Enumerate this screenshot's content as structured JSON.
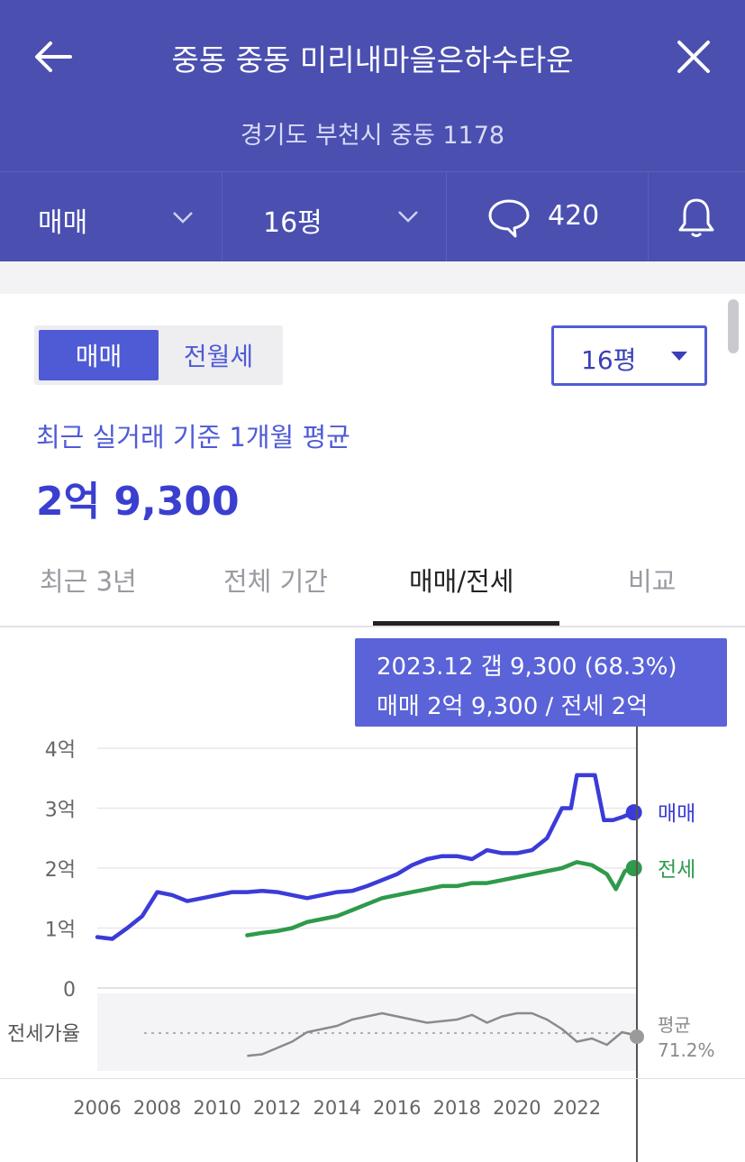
{
  "header": {
    "title": "중동 중동 미리내마을은하수타운",
    "address": "경기도 부천시 중동 1178",
    "trade_type": "매매",
    "area": "16평",
    "comment_count": "420"
  },
  "toggle": {
    "active": "매매",
    "inactive": "전월세"
  },
  "size_select": {
    "value": "16평"
  },
  "summary": {
    "subtitle": "최근 실거래 기준 1개월 평균",
    "price": "2억 9,300"
  },
  "tabs": [
    {
      "label": "최근 3년",
      "active": false
    },
    {
      "label": "전체 기간",
      "active": false
    },
    {
      "label": "매매/전세",
      "active": true
    },
    {
      "label": "비교",
      "active": false
    }
  ],
  "tooltip": {
    "line1": "2023.12  갭 9,300 (68.3%)",
    "line2": "매매 2억 9,300 / 전세 2억"
  },
  "colors": {
    "header": "#4a4fb0",
    "sale": "#3b3bd9",
    "jeonse": "#2e9a4b",
    "ratio": "#8a8a8a"
  },
  "chart_data": {
    "type": "line",
    "y_ticks": [
      "4억",
      "3억",
      "2억",
      "1억",
      "0"
    ],
    "x_ticks": [
      "2006",
      "2008",
      "2010",
      "2012",
      "2014",
      "2016",
      "2018",
      "2020",
      "2022"
    ],
    "ylim": [
      0,
      4
    ],
    "xlim": [
      2006,
      2024
    ],
    "y_unit": "억",
    "series": [
      {
        "name": "매매",
        "color": "#3b3bd9",
        "x": [
          2006.0,
          2006.5,
          2007.0,
          2007.5,
          2008.0,
          2008.5,
          2009.0,
          2009.5,
          2010.0,
          2010.5,
          2011.0,
          2011.5,
          2012.0,
          2012.5,
          2013.0,
          2013.5,
          2014.0,
          2014.5,
          2015.0,
          2015.5,
          2016.0,
          2016.5,
          2017.0,
          2017.5,
          2018.0,
          2018.5,
          2019.0,
          2019.5,
          2020.0,
          2020.5,
          2021.0,
          2021.5,
          2021.8,
          2022.0,
          2022.3,
          2022.6,
          2022.9,
          2023.2,
          2023.5,
          2023.9
        ],
        "y": [
          0.85,
          0.82,
          1.0,
          1.2,
          1.6,
          1.55,
          1.45,
          1.5,
          1.55,
          1.6,
          1.6,
          1.62,
          1.6,
          1.55,
          1.5,
          1.55,
          1.6,
          1.62,
          1.7,
          1.8,
          1.9,
          2.05,
          2.15,
          2.2,
          2.2,
          2.15,
          2.3,
          2.25,
          2.25,
          2.3,
          2.5,
          3.0,
          3.0,
          3.55,
          3.55,
          3.55,
          2.8,
          2.8,
          2.85,
          2.93
        ]
      },
      {
        "name": "전세",
        "color": "#2e9a4b",
        "x": [
          2011.0,
          2011.5,
          2012.0,
          2012.5,
          2013.0,
          2013.5,
          2014.0,
          2014.5,
          2015.0,
          2015.5,
          2016.0,
          2016.5,
          2017.0,
          2017.5,
          2018.0,
          2018.5,
          2019.0,
          2019.5,
          2020.0,
          2020.5,
          2021.0,
          2021.5,
          2022.0,
          2022.5,
          2023.0,
          2023.3,
          2023.6,
          2023.9
        ],
        "y": [
          0.88,
          0.92,
          0.95,
          1.0,
          1.1,
          1.15,
          1.2,
          1.3,
          1.4,
          1.5,
          1.55,
          1.6,
          1.65,
          1.7,
          1.7,
          1.75,
          1.75,
          1.8,
          1.85,
          1.9,
          1.95,
          2.0,
          2.1,
          2.05,
          1.9,
          1.65,
          1.95,
          2.0
        ]
      }
    ],
    "end_labels": [
      "매매",
      "전세"
    ],
    "ratio_label": "전세가율",
    "ratio_series": {
      "x": [
        2011.0,
        2011.5,
        2012.0,
        2012.5,
        2013.0,
        2013.5,
        2014.0,
        2014.5,
        2015.0,
        2015.5,
        2016.0,
        2016.5,
        2017.0,
        2017.5,
        2018.0,
        2018.5,
        2019.0,
        2019.5,
        2020.0,
        2020.5,
        2021.0,
        2021.5,
        2022.0,
        2022.5,
        2023.0,
        2023.5,
        2023.9
      ],
      "y": [
        55,
        56,
        60,
        64,
        70,
        72,
        74,
        78,
        80,
        82,
        80,
        78,
        76,
        77,
        78,
        81,
        76,
        80,
        82,
        82,
        78,
        72,
        64,
        66,
        62,
        70,
        68.3
      ]
    },
    "ratio_avg_label": "평균",
    "ratio_avg_value": "71.2%"
  }
}
